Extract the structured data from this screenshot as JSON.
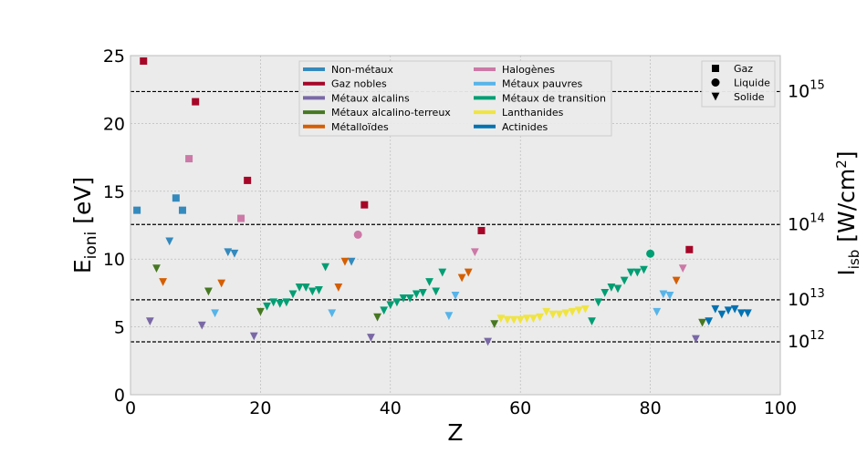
{
  "chart_data": {
    "type": "scatter",
    "xlabel": "Z",
    "ylabel": "E",
    "ylabel_sub": "ioni",
    "ylabel_unit": " [eV]",
    "y2label": "I",
    "y2label_sub": "isb",
    "y2label_unit": " [W/cm",
    "y2label_sup": "2",
    "y2label_close": "]",
    "xlim": [
      0,
      100
    ],
    "ylim": [
      0,
      25
    ],
    "xticks": [
      0,
      20,
      40,
      60,
      80,
      100
    ],
    "yticks": [
      0,
      5,
      10,
      15,
      20,
      25
    ],
    "grid": true,
    "right_axis": {
      "ticks": [
        {
          "base": "10",
          "exp": "15",
          "y": 22.35
        },
        {
          "base": "10",
          "exp": "14",
          "y": 12.55
        },
        {
          "base": "10",
          "exp": "13",
          "y": 7.0
        },
        {
          "base": "10",
          "exp": "12",
          "y": 3.9
        }
      ]
    },
    "hlines": [
      22.35,
      12.55,
      7.0,
      3.9
    ],
    "legend_categories": {
      "placement": "top-center",
      "items": [
        {
          "label": "Non-métaux",
          "color": "#348ABD"
        },
        {
          "label": "Gaz nobles",
          "color": "#A60628"
        },
        {
          "label": "Métaux alcalins",
          "color": "#7A68A6"
        },
        {
          "label": "Métaux alcalino-terreux",
          "color": "#467821"
        },
        {
          "label": "Métalloïdes",
          "color": "#D55E00"
        },
        {
          "label": "Halogènes",
          "color": "#CC79A7"
        },
        {
          "label": "Métaux pauvres",
          "color": "#56B4E9"
        },
        {
          "label": "Métaux de transition",
          "color": "#009E73"
        },
        {
          "label": "Lanthanides",
          "color": "#F0E442"
        },
        {
          "label": "Actinides",
          "color": "#0072B2"
        }
      ]
    },
    "legend_phases": {
      "placement": "top-right",
      "items": [
        {
          "label": "Gaz",
          "marker": "square"
        },
        {
          "label": "Liquide",
          "marker": "circle"
        },
        {
          "label": "Solide",
          "marker": "triangle"
        }
      ]
    },
    "series": [
      {
        "name": "Non-métaux",
        "color": "#348ABD",
        "points": [
          [
            1,
            13.6,
            "square"
          ],
          [
            6,
            11.3,
            "triangle"
          ],
          [
            7,
            14.5,
            "square"
          ],
          [
            8,
            13.6,
            "square"
          ],
          [
            15,
            10.5,
            "triangle"
          ],
          [
            16,
            10.4,
            "triangle"
          ],
          [
            34,
            9.8,
            "triangle"
          ]
        ]
      },
      {
        "name": "Gaz nobles",
        "color": "#A60628",
        "points": [
          [
            2,
            24.6,
            "square"
          ],
          [
            10,
            21.6,
            "square"
          ],
          [
            18,
            15.8,
            "square"
          ],
          [
            36,
            14.0,
            "square"
          ],
          [
            54,
            12.1,
            "square"
          ],
          [
            86,
            10.7,
            "square"
          ]
        ]
      },
      {
        "name": "Métaux alcalins",
        "color": "#7A68A6",
        "points": [
          [
            3,
            5.4,
            "triangle"
          ],
          [
            11,
            5.1,
            "triangle"
          ],
          [
            19,
            4.3,
            "triangle"
          ],
          [
            37,
            4.2,
            "triangle"
          ],
          [
            55,
            3.9,
            "triangle"
          ],
          [
            87,
            4.1,
            "triangle"
          ]
        ]
      },
      {
        "name": "Métaux alcalino-terreux",
        "color": "#467821",
        "points": [
          [
            4,
            9.3,
            "triangle"
          ],
          [
            12,
            7.6,
            "triangle"
          ],
          [
            20,
            6.1,
            "triangle"
          ],
          [
            38,
            5.7,
            "triangle"
          ],
          [
            56,
            5.2,
            "triangle"
          ],
          [
            88,
            5.3,
            "triangle"
          ]
        ]
      },
      {
        "name": "Métalloïdes",
        "color": "#D55E00",
        "points": [
          [
            5,
            8.3,
            "triangle"
          ],
          [
            14,
            8.2,
            "triangle"
          ],
          [
            32,
            7.9,
            "triangle"
          ],
          [
            33,
            9.8,
            "triangle"
          ],
          [
            51,
            8.6,
            "triangle"
          ],
          [
            52,
            9.0,
            "triangle"
          ],
          [
            84,
            8.4,
            "triangle"
          ]
        ]
      },
      {
        "name": "Halogènes",
        "color": "#CC79A7",
        "points": [
          [
            9,
            17.4,
            "square"
          ],
          [
            17,
            13.0,
            "square"
          ],
          [
            35,
            11.8,
            "circle"
          ],
          [
            53,
            10.5,
            "triangle"
          ],
          [
            85,
            9.3,
            "triangle"
          ]
        ]
      },
      {
        "name": "Métaux pauvres",
        "color": "#56B4E9",
        "points": [
          [
            13,
            6.0,
            "triangle"
          ],
          [
            31,
            6.0,
            "triangle"
          ],
          [
            49,
            5.8,
            "triangle"
          ],
          [
            50,
            7.3,
            "triangle"
          ],
          [
            81,
            6.1,
            "triangle"
          ],
          [
            82,
            7.4,
            "triangle"
          ],
          [
            83,
            7.3,
            "triangle"
          ]
        ]
      },
      {
        "name": "Métaux de transition",
        "color": "#009E73",
        "points": [
          [
            21,
            6.5,
            "triangle"
          ],
          [
            22,
            6.8,
            "triangle"
          ],
          [
            23,
            6.7,
            "triangle"
          ],
          [
            24,
            6.8,
            "triangle"
          ],
          [
            25,
            7.4,
            "triangle"
          ],
          [
            26,
            7.9,
            "triangle"
          ],
          [
            27,
            7.9,
            "triangle"
          ],
          [
            28,
            7.6,
            "triangle"
          ],
          [
            29,
            7.7,
            "triangle"
          ],
          [
            30,
            9.4,
            "triangle"
          ],
          [
            39,
            6.2,
            "triangle"
          ],
          [
            40,
            6.6,
            "triangle"
          ],
          [
            41,
            6.8,
            "triangle"
          ],
          [
            42,
            7.1,
            "triangle"
          ],
          [
            43,
            7.1,
            "triangle"
          ],
          [
            44,
            7.4,
            "triangle"
          ],
          [
            45,
            7.5,
            "triangle"
          ],
          [
            46,
            8.3,
            "triangle"
          ],
          [
            47,
            7.6,
            "triangle"
          ],
          [
            48,
            9.0,
            "triangle"
          ],
          [
            71,
            5.4,
            "triangle"
          ],
          [
            72,
            6.8,
            "triangle"
          ],
          [
            73,
            7.5,
            "triangle"
          ],
          [
            74,
            7.9,
            "triangle"
          ],
          [
            75,
            7.8,
            "triangle"
          ],
          [
            76,
            8.4,
            "triangle"
          ],
          [
            77,
            9.0,
            "triangle"
          ],
          [
            78,
            9.0,
            "triangle"
          ],
          [
            79,
            9.2,
            "triangle"
          ],
          [
            80,
            10.4,
            "circle"
          ]
        ]
      },
      {
        "name": "Lanthanides",
        "color": "#F0E442",
        "points": [
          [
            57,
            5.6,
            "triangle"
          ],
          [
            58,
            5.5,
            "triangle"
          ],
          [
            59,
            5.5,
            "triangle"
          ],
          [
            60,
            5.5,
            "triangle"
          ],
          [
            61,
            5.6,
            "triangle"
          ],
          [
            62,
            5.6,
            "triangle"
          ],
          [
            63,
            5.7,
            "triangle"
          ],
          [
            64,
            6.1,
            "triangle"
          ],
          [
            65,
            5.9,
            "triangle"
          ],
          [
            66,
            5.9,
            "triangle"
          ],
          [
            67,
            6.0,
            "triangle"
          ],
          [
            68,
            6.1,
            "triangle"
          ],
          [
            69,
            6.2,
            "triangle"
          ],
          [
            70,
            6.3,
            "triangle"
          ]
        ]
      },
      {
        "name": "Actinides",
        "color": "#0072B2",
        "points": [
          [
            89,
            5.4,
            "triangle"
          ],
          [
            90,
            6.3,
            "triangle"
          ],
          [
            91,
            5.9,
            "triangle"
          ],
          [
            92,
            6.2,
            "triangle"
          ],
          [
            93,
            6.3,
            "triangle"
          ],
          [
            94,
            6.0,
            "triangle"
          ],
          [
            95,
            6.0,
            "triangle"
          ]
        ]
      }
    ]
  }
}
